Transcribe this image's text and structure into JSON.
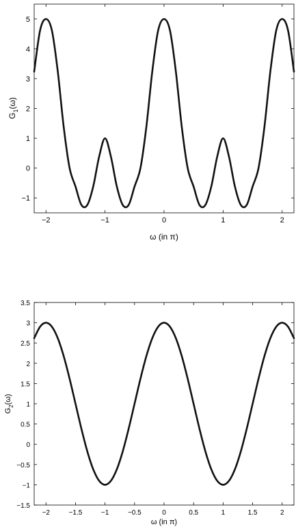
{
  "chart_data": [
    {
      "type": "line",
      "title": "",
      "xlabel": "ω (in π)",
      "ylabel": "G1(ω)",
      "ylabel_main": "G",
      "ylabel_sub": "1",
      "ylabel_arg": "(ω)",
      "xlim": [
        -2.2,
        2.2
      ],
      "ylim": [
        -1.5,
        5.5
      ],
      "xticks": [
        -2,
        -1,
        0,
        1,
        2
      ],
      "xtick_labels": [
        "−2",
        "−1",
        "0",
        "1",
        "2"
      ],
      "yticks": [
        -1,
        0,
        1,
        2,
        3,
        4,
        5
      ],
      "ytick_labels": [
        "−1",
        "0",
        "1",
        "2",
        "3",
        "4",
        "5"
      ],
      "grid": false,
      "series": [
        {
          "x": [
            -2.2,
            -2.1,
            -2.0,
            -1.9,
            -1.8,
            -1.7,
            -1.6,
            -1.5,
            -1.4,
            -1.3,
            -1.2,
            -1.1,
            -1.0,
            -0.9,
            -0.8,
            -0.7,
            -0.6,
            -0.5,
            -0.4,
            -0.3,
            -0.2,
            -0.1,
            0.0,
            0.1,
            0.2,
            0.3,
            0.4,
            0.5,
            0.6,
            0.7,
            0.8,
            0.9,
            1.0,
            1.1,
            1.2,
            1.3,
            1.4,
            1.5,
            1.6,
            1.7,
            1.8,
            1.9,
            2.0,
            2.1,
            2.2
          ],
          "y": [
            3.236,
            4.618,
            5.0,
            4.618,
            3.236,
            1.382,
            0.0,
            -0.618,
            -1.236,
            -1.236,
            -0.618,
            0.382,
            1.0,
            0.382,
            -0.618,
            -1.236,
            -1.236,
            -0.618,
            0.0,
            1.382,
            3.236,
            4.618,
            5.0,
            4.618,
            3.236,
            1.382,
            0.0,
            -0.618,
            -1.236,
            -1.236,
            -0.618,
            0.382,
            1.0,
            0.382,
            -0.618,
            -1.236,
            -1.236,
            -0.618,
            0.0,
            1.382,
            3.236,
            4.618,
            5.0,
            4.618,
            3.236
          ]
        }
      ]
    },
    {
      "type": "line",
      "title": "",
      "xlabel": "ω (in π)",
      "ylabel": "G2(ω)",
      "ylabel_main": "G",
      "ylabel_sub": "2",
      "ylabel_arg": "(ω)",
      "xlim": [
        -2.2,
        2.2
      ],
      "ylim": [
        -1.5,
        3.5
      ],
      "xticks": [
        -2,
        -1.5,
        -1,
        -0.5,
        0,
        0.5,
        1,
        1.5,
        2
      ],
      "xtick_labels": [
        "−2",
        "−1.5",
        "−1",
        "−0.5",
        "0",
        "0.5",
        "1",
        "1.5",
        "2"
      ],
      "yticks": [
        -1.5,
        -1,
        -0.5,
        0,
        0.5,
        1,
        1.5,
        2,
        2.5,
        3,
        3.5
      ],
      "ytick_labels": [
        "−1.5",
        "−1",
        "−0.5",
        "0",
        "0.5",
        "1",
        "1.5",
        "2",
        "2.5",
        "3",
        "3.5"
      ],
      "grid": false,
      "series": [
        {
          "x": [
            -2.2,
            -2.1,
            -2.0,
            -1.9,
            -1.8,
            -1.7,
            -1.6,
            -1.5,
            -1.4,
            -1.3,
            -1.2,
            -1.1,
            -1.0,
            -0.9,
            -0.8,
            -0.7,
            -0.6,
            -0.5,
            -0.4,
            -0.3,
            -0.2,
            -0.1,
            0.0,
            0.1,
            0.2,
            0.3,
            0.4,
            0.5,
            0.6,
            0.7,
            0.8,
            0.9,
            1.0,
            1.1,
            1.2,
            1.3,
            1.4,
            1.5,
            1.6,
            1.7,
            1.8,
            1.9,
            2.0,
            2.1,
            2.2
          ],
          "y": [
            2.618,
            2.902,
            3.0,
            2.902,
            2.618,
            2.176,
            1.618,
            1.0,
            0.382,
            -0.176,
            -0.618,
            -0.902,
            -1.0,
            -0.902,
            -0.618,
            -0.176,
            0.382,
            1.0,
            1.618,
            2.176,
            2.618,
            2.902,
            3.0,
            2.902,
            2.618,
            2.176,
            1.618,
            1.0,
            0.382,
            -0.176,
            -0.618,
            -0.902,
            -1.0,
            -0.902,
            -0.618,
            -0.176,
            0.382,
            1.0,
            1.618,
            2.176,
            2.618,
            2.902,
            3.0,
            2.902,
            2.618
          ]
        }
      ]
    }
  ]
}
